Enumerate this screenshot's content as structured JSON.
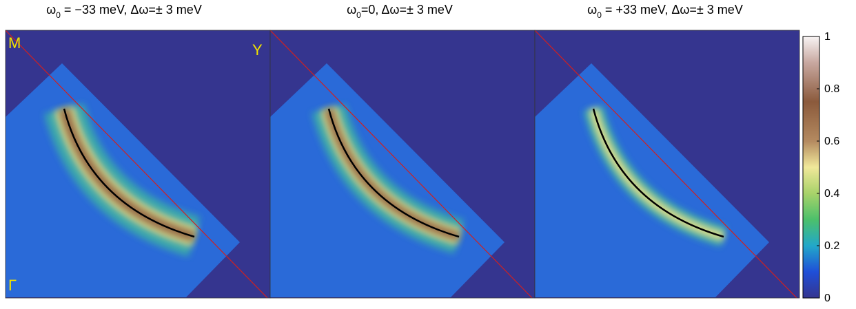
{
  "chart_data": {
    "type": "heatmap",
    "panels": [
      {
        "title": {
          "symbol": "ω",
          "subscript": "0",
          "text": " = −33 meV, Δω=± 3 meV"
        }
      },
      {
        "title": {
          "symbol": "ω",
          "subscript": "0",
          "text": "=0, Δω=± 3 meV"
        }
      },
      {
        "title": {
          "symbol": "ω",
          "subscript": "0",
          "text": " = +33 meV, Δω=± 3 meV"
        }
      }
    ],
    "point_labels": [
      "M",
      "Y",
      "Γ"
    ],
    "colorbar": {
      "ylim": [
        0,
        1
      ],
      "yticks": [
        0,
        0.2,
        0.4,
        0.6,
        0.8,
        1
      ]
    }
  }
}
